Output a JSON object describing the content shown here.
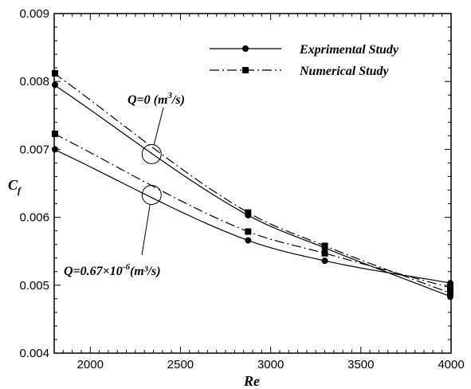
{
  "chart_data": {
    "type": "line",
    "xlabel": "Re",
    "ylabel": "C",
    "ylabel_sub": "f",
    "xlim": [
      1800,
      4000
    ],
    "ylim": [
      0.004,
      0.009
    ],
    "xticks": [
      2000,
      2500,
      3000,
      3500,
      4000
    ],
    "xtick_labels": [
      "2000",
      "2500",
      "3000",
      "3500",
      "4000"
    ],
    "yticks": [
      0.004,
      0.005,
      0.006,
      0.007,
      0.008,
      0.009
    ],
    "ytick_labels": [
      "0.004",
      "0.005",
      "0.006",
      "0.007",
      "0.008",
      "0.009"
    ],
    "grid": false,
    "legend_position": "top-right",
    "legend": [
      {
        "label": "Exprimental Study",
        "line": "solid",
        "marker": "circle"
      },
      {
        "label": "Numerical Study",
        "line": "dashdot",
        "marker": "square"
      }
    ],
    "series": [
      {
        "name": "Exprimental Study",
        "group": "Q=0",
        "line": "solid",
        "marker": "circle",
        "x": [
          1800,
          2875,
          3300,
          4000
        ],
        "y": [
          0.00795,
          0.00603,
          0.00555,
          0.00483
        ]
      },
      {
        "name": "Numerical Study",
        "group": "Q=0",
        "line": "dashdot",
        "marker": "square",
        "x": [
          1800,
          2875,
          3300,
          4000
        ],
        "y": [
          0.00812,
          0.00607,
          0.00558,
          0.00488
        ]
      },
      {
        "name": "Exprimental Study",
        "group": "Q=0.67×10^-6",
        "line": "solid",
        "marker": "circle",
        "x": [
          1800,
          2875,
          3300,
          4000
        ],
        "y": [
          0.007,
          0.00566,
          0.00536,
          0.00503
        ]
      },
      {
        "name": "Numerical Study",
        "group": "Q=0.67×10^-6",
        "line": "dashdot",
        "marker": "square",
        "x": [
          1800,
          2875,
          3300,
          4000
        ],
        "y": [
          0.00723,
          0.00579,
          0.00547,
          0.00496
        ]
      }
    ],
    "annotations": [
      {
        "id": "q0",
        "label_main": "Q=0 (m",
        "label_sup": "3",
        "label_end": "/s)",
        "target_x": 2340,
        "target_y": 0.00693
      },
      {
        "id": "q067",
        "label_main": "Q=0.67×10",
        "label_sup": "-6",
        "label_end": "(m³/s)",
        "target_x": 2340,
        "target_y": 0.00633
      }
    ]
  }
}
